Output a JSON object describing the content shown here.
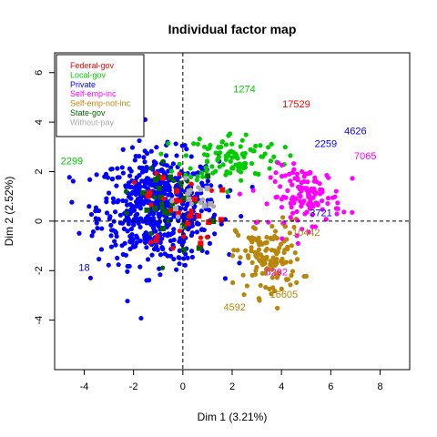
{
  "chart_data": {
    "type": "scatter",
    "title": "Individual factor map",
    "xlabel": "Dim 1 (3.21%)",
    "ylabel": "Dim 2 (2.52%)",
    "xlim": [
      -5.2,
      9.2
    ],
    "ylim": [
      -6.0,
      6.8
    ],
    "x_ticks": [
      "-4",
      "-2",
      "0",
      "2",
      "4",
      "6",
      "8"
    ],
    "y_ticks": [
      "-4",
      "-2",
      "0",
      "2",
      "4",
      "6"
    ],
    "x_tick_values": [
      -4,
      -2,
      0,
      2,
      4,
      6,
      8
    ],
    "y_tick_values": [
      -4,
      -2,
      0,
      2,
      4,
      6
    ],
    "reference_lines": {
      "x": 0,
      "y": 0,
      "style": "dashed"
    },
    "legend_position": "top-left",
    "series": [
      {
        "name": "Federal-gov",
        "color": "#ff0000",
        "center": [
          0.0,
          0.5
        ],
        "spread": [
          1.6,
          1.6
        ],
        "count": 35
      },
      {
        "name": "Local-gov",
        "color": "#00cc00",
        "center": [
          2.0,
          2.6
        ],
        "spread": [
          1.8,
          0.9
        ],
        "count": 110
      },
      {
        "name": "Private",
        "color": "#0000ff",
        "center": [
          -1.0,
          0.5
        ],
        "spread": [
          2.2,
          2.0
        ],
        "count": 620
      },
      {
        "name": "Self-emp-inc",
        "color": "#ff00ff",
        "center": [
          5.0,
          1.0
        ],
        "spread": [
          1.3,
          1.1
        ],
        "count": 130
      },
      {
        "name": "Self-emp-not-inc",
        "color": "#b8860b",
        "center": [
          3.5,
          -1.5
        ],
        "spread": [
          1.2,
          1.4
        ],
        "count": 140
      },
      {
        "name": "State-gov",
        "color": "#006400",
        "center": [
          -0.5,
          0.6
        ],
        "spread": [
          1.8,
          1.6
        ],
        "count": 45
      },
      {
        "name": "Without-pay",
        "color": "#aaaaaa",
        "center": [
          0.4,
          0.8
        ],
        "spread": [
          0.9,
          0.9
        ],
        "count": 18
      }
    ],
    "point_labels": [
      {
        "text": "4626",
        "x": 7.0,
        "y": 3.5,
        "color": "#0000ff"
      },
      {
        "text": "16605",
        "x": 4.1,
        "y": -3.1,
        "color": "#b8860b"
      },
      {
        "text": "17529",
        "x": 4.6,
        "y": 4.6,
        "color": "#ff0000"
      },
      {
        "text": "3721",
        "x": 5.6,
        "y": 0.2,
        "color": "#0000ff"
      },
      {
        "text": "7065",
        "x": 7.4,
        "y": 2.5,
        "color": "#ff00ff"
      },
      {
        "text": "1274",
        "x": 2.5,
        "y": 5.2,
        "color": "#00cc00"
      },
      {
        "text": "2259",
        "x": 5.8,
        "y": 3.0,
        "color": "#0000ff"
      },
      {
        "text": "4592",
        "x": 2.1,
        "y": -3.6,
        "color": "#b8860b"
      },
      {
        "text": "10442",
        "x": 5.0,
        "y": -0.6,
        "color": "#b8860b"
      },
      {
        "text": "5292",
        "x": 3.8,
        "y": -2.2,
        "color": "#ff00ff"
      },
      {
        "text": "2299",
        "x": -4.5,
        "y": 2.3,
        "color": "#00cc00"
      },
      {
        "text": "18",
        "x": -4.0,
        "y": -2.0,
        "color": "#0000ff"
      }
    ]
  }
}
